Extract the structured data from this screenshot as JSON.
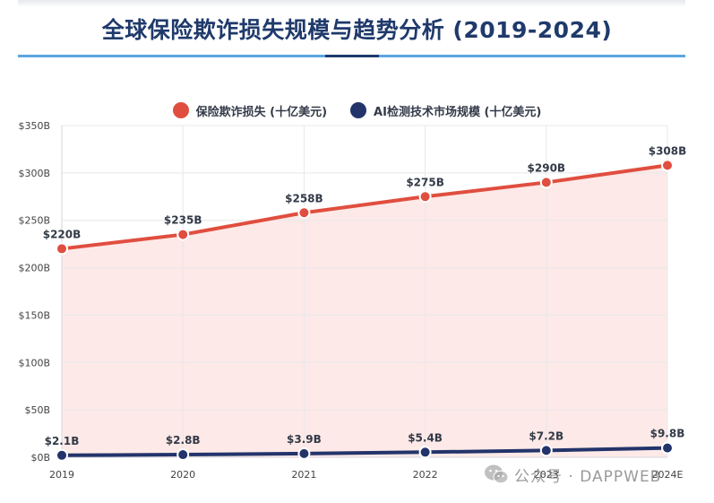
{
  "colors": {
    "title": "#1f3a6b",
    "fraud": "#e04e3f",
    "fraud_fill": "#fde8e6",
    "ai": "#23346b",
    "grid": "#e8e8ec",
    "axis_text": "#444444"
  },
  "chart_data": {
    "type": "line",
    "title": "全球保险欺诈损失规模与趋势分析 (2019-2024)",
    "categories": [
      "2019",
      "2020",
      "2021",
      "2022",
      "2023",
      "2024E"
    ],
    "ylim": [
      0,
      350
    ],
    "yticks": [
      0,
      50,
      100,
      150,
      200,
      250,
      300,
      350
    ],
    "ytick_labels": [
      "$0B",
      "$50B",
      "$100B",
      "$150B",
      "$200B",
      "$250B",
      "$300B",
      "$350B"
    ],
    "grid": true,
    "legend_position": "top-center",
    "series": [
      {
        "name": "保险欺诈损失 (十亿美元)",
        "values": [
          220,
          235,
          258,
          275,
          290,
          308
        ],
        "labels": [
          "$220B",
          "$235B",
          "$258B",
          "$275B",
          "$290B",
          "$308B"
        ],
        "color": "#e04e3f",
        "area": true
      },
      {
        "name": "AI检测技术市场规模 (十亿美元)",
        "values": [
          2.1,
          2.8,
          3.9,
          5.4,
          7.2,
          9.8
        ],
        "labels": [
          "$2.1B",
          "$2.8B",
          "$3.9B",
          "$5.4B",
          "$7.2B",
          "$9.8B"
        ],
        "color": "#23346b",
        "area": false
      }
    ]
  },
  "watermark": {
    "text": "公众号 · DAPPWEB",
    "icon": "wechat-icon"
  }
}
